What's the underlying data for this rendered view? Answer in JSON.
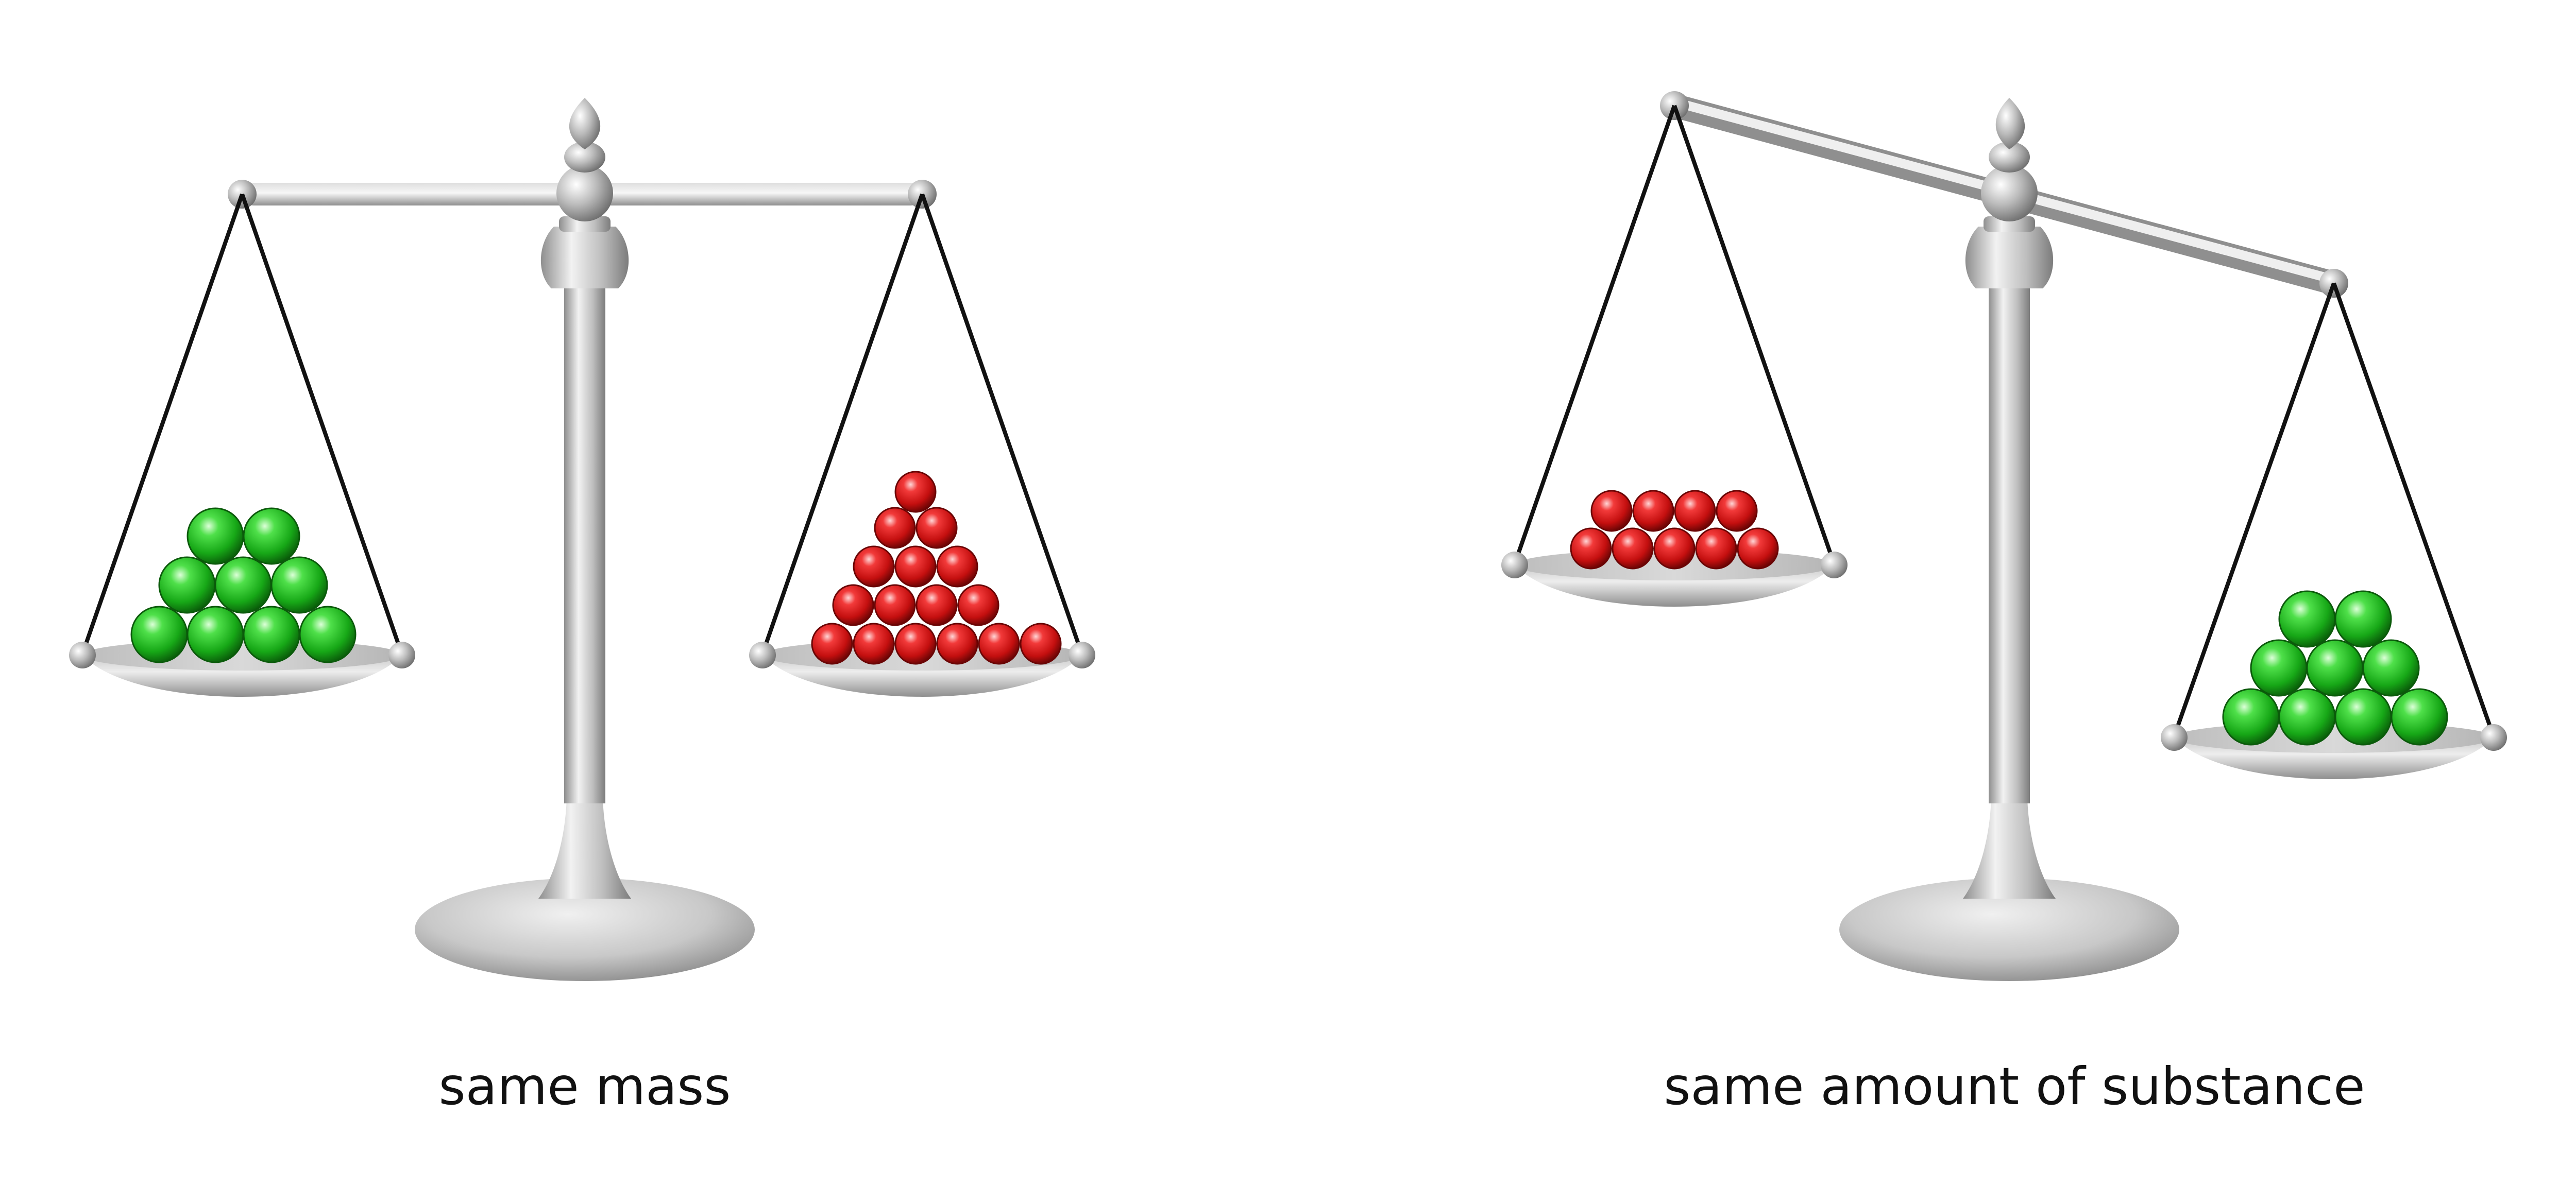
{
  "diagram": {
    "left_scale": {
      "caption": "same mass",
      "beam_state": "balanced",
      "left_pan": {
        "ball_color": "green",
        "ball_count": 9,
        "rows": [
          2,
          3,
          4
        ]
      },
      "right_pan": {
        "ball_color": "red",
        "ball_count": 16,
        "rows": [
          1,
          2,
          3,
          4,
          6
        ]
      }
    },
    "right_scale": {
      "caption": "same amount of substance",
      "beam_state": "tilted, red side up",
      "left_pan": {
        "ball_color": "red",
        "ball_count": 9,
        "rows": [
          4,
          5
        ]
      },
      "right_pan": {
        "ball_color": "green",
        "ball_count": 9,
        "rows": [
          2,
          3,
          4
        ]
      }
    },
    "colors": {
      "green": "#1fb31f",
      "red": "#d11414",
      "metal": "#c4c4c4"
    }
  }
}
